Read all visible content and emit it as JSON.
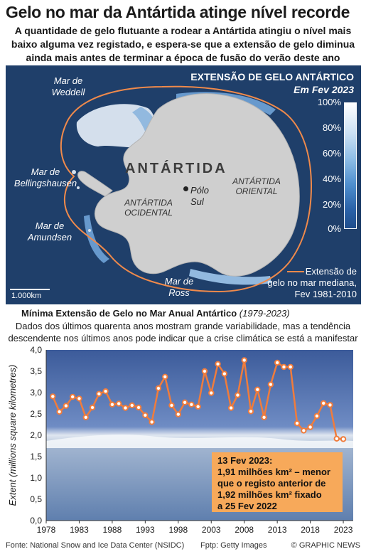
{
  "header": {
    "title": "Gelo no mar da Antártida atinge nível recorde",
    "subtitle_lines": [
      "A quantidade de gelo flutuante a rodear a Antártida atingiu o nível mais",
      "baixo alguma vez registado, e espera-se que a extensão de gelo diminua",
      "ainda mais antes de terminar a época de fusão do verão deste ano"
    ]
  },
  "map": {
    "title": "EXTENSÃO DE GELO ANTÁRTICO",
    "date": "Em Fev 2023",
    "legend_labels": [
      "100%",
      "80%",
      "60%",
      "40%",
      "20%",
      "0%"
    ],
    "seas": {
      "weddell": [
        "Mar de",
        "Weddell"
      ],
      "bellingshausen": [
        "Mar de",
        "Bellingshausen"
      ],
      "amundsen": [
        "Mar de",
        "Amundsen"
      ],
      "ross": [
        "Mar de",
        "Ross"
      ]
    },
    "continent": "ANTÁRTIDA",
    "west": [
      "ANTÁRTIDA",
      "OCIDENTAL"
    ],
    "east": [
      "ANTÁRTIDA",
      "ORIENTAL"
    ],
    "pole": [
      "Pólo",
      "Sul"
    ],
    "median_key": [
      "Extensão de",
      "gelo no mar mediana,",
      "Fev 1981-2010"
    ],
    "scale": "1.000km",
    "colors": {
      "ocean": "#1f3f6a",
      "land": "#cfcfcf",
      "median": "#f08a4b"
    }
  },
  "chart_section": {
    "title_main": "Mínima Extensão de Gelo no Mar Anual Antártico",
    "title_years": "(1979-2023)",
    "desc_lines": [
      "Dados dos últimos quarenta anos mostram grande variabilidade, mas a tendência",
      "descendente nos últimos anos pode indicar que a crise climática se está a manifestar"
    ],
    "annotation_lines": [
      "13 Fev 2023:",
      "1,91 milhões km² – menor",
      "que o registo anterior de",
      "1,92 milhões km² fixado",
      "a 25 Fev 2022"
    ]
  },
  "chart_data": {
    "type": "line",
    "ylabel": "Extent (millions square kilometres)",
    "ylim": [
      0,
      4
    ],
    "yticks": [
      "0,0",
      "0,5",
      "1,0",
      "1,5",
      "2,0",
      "2,5",
      "3,0",
      "3,5",
      "4,0"
    ],
    "xticks": [
      "1978",
      "1983",
      "1988",
      "1993",
      "1998",
      "2003",
      "2008",
      "2013",
      "2018",
      "2023"
    ],
    "x": [
      1979,
      1980,
      1981,
      1982,
      1983,
      1984,
      1985,
      1986,
      1987,
      1988,
      1989,
      1990,
      1991,
      1992,
      1993,
      1994,
      1995,
      1996,
      1997,
      1998,
      1999,
      2000,
      2001,
      2002,
      2003,
      2004,
      2005,
      2006,
      2007,
      2008,
      2009,
      2010,
      2011,
      2012,
      2013,
      2014,
      2015,
      2016,
      2017,
      2018,
      2019,
      2020,
      2021,
      2022,
      2023
    ],
    "values": [
      2.91,
      2.55,
      2.69,
      2.9,
      2.86,
      2.42,
      2.65,
      2.97,
      3.03,
      2.72,
      2.74,
      2.64,
      2.7,
      2.65,
      2.47,
      2.31,
      3.1,
      3.37,
      2.7,
      2.49,
      2.77,
      2.72,
      2.67,
      3.5,
      2.99,
      3.67,
      3.44,
      2.64,
      2.94,
      3.76,
      2.56,
      3.07,
      2.42,
      3.19,
      3.7,
      3.6,
      3.6,
      2.28,
      2.11,
      2.19,
      2.45,
      2.75,
      2.71,
      1.92,
      1.91
    ],
    "series_color": "#f07c3c",
    "grid": false
  },
  "footer": {
    "source": "Fonte: National Snow and Ice Data Center (NSIDC)",
    "photo": "Fptp: Getty Images",
    "credit": "© GRAPHIC NEWS"
  }
}
